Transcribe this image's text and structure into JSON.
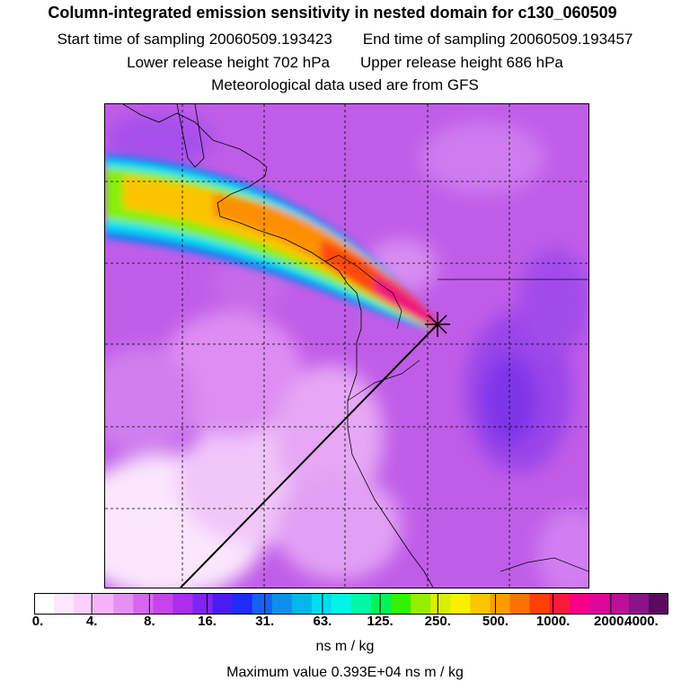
{
  "titles": {
    "main": "Column-integrated emission sensitivity in nested domain for c130_060509",
    "start_time": "Start time of sampling 20060509.193423",
    "end_time": "End time of sampling 20060509.193457",
    "lower_release": "Lower release height  702 hPa",
    "upper_release": "Upper release height  686 hPa",
    "met_data": "Meteorological data used are from GFS"
  },
  "colorbar": {
    "tick_labels": [
      "0.",
      "4.",
      "8.",
      "16.",
      "31.",
      "63.",
      "125.",
      "250.",
      "500.",
      "1000.",
      "2000.",
      "4000."
    ],
    "colors": [
      "#ffffff",
      "#fde6ff",
      "#fbd0fc",
      "#f5b2f8",
      "#e88ff2",
      "#d966ef",
      "#c843ee",
      "#ad2cee",
      "#7f25ef",
      "#4a1cf0",
      "#1f2cf5",
      "#1563f2",
      "#0d8ff0",
      "#05b5ee",
      "#00dcef",
      "#00f4e6",
      "#00f7a6",
      "#00f25a",
      "#32f200",
      "#96ee00",
      "#d7ef00",
      "#fbef00",
      "#fdc400",
      "#fd9c00",
      "#fd7000",
      "#fd4100",
      "#f91c3a",
      "#f70089",
      "#dd079e",
      "#bb109a",
      "#8e118a",
      "#5b0a5f"
    ],
    "unit_label": "ns m / kg",
    "max_value_label": "Maximum value  0.393E+04 ns m / kg"
  },
  "map": {
    "receptor_marker": "receptor-x-icon",
    "background_color": "#c05de8"
  }
}
